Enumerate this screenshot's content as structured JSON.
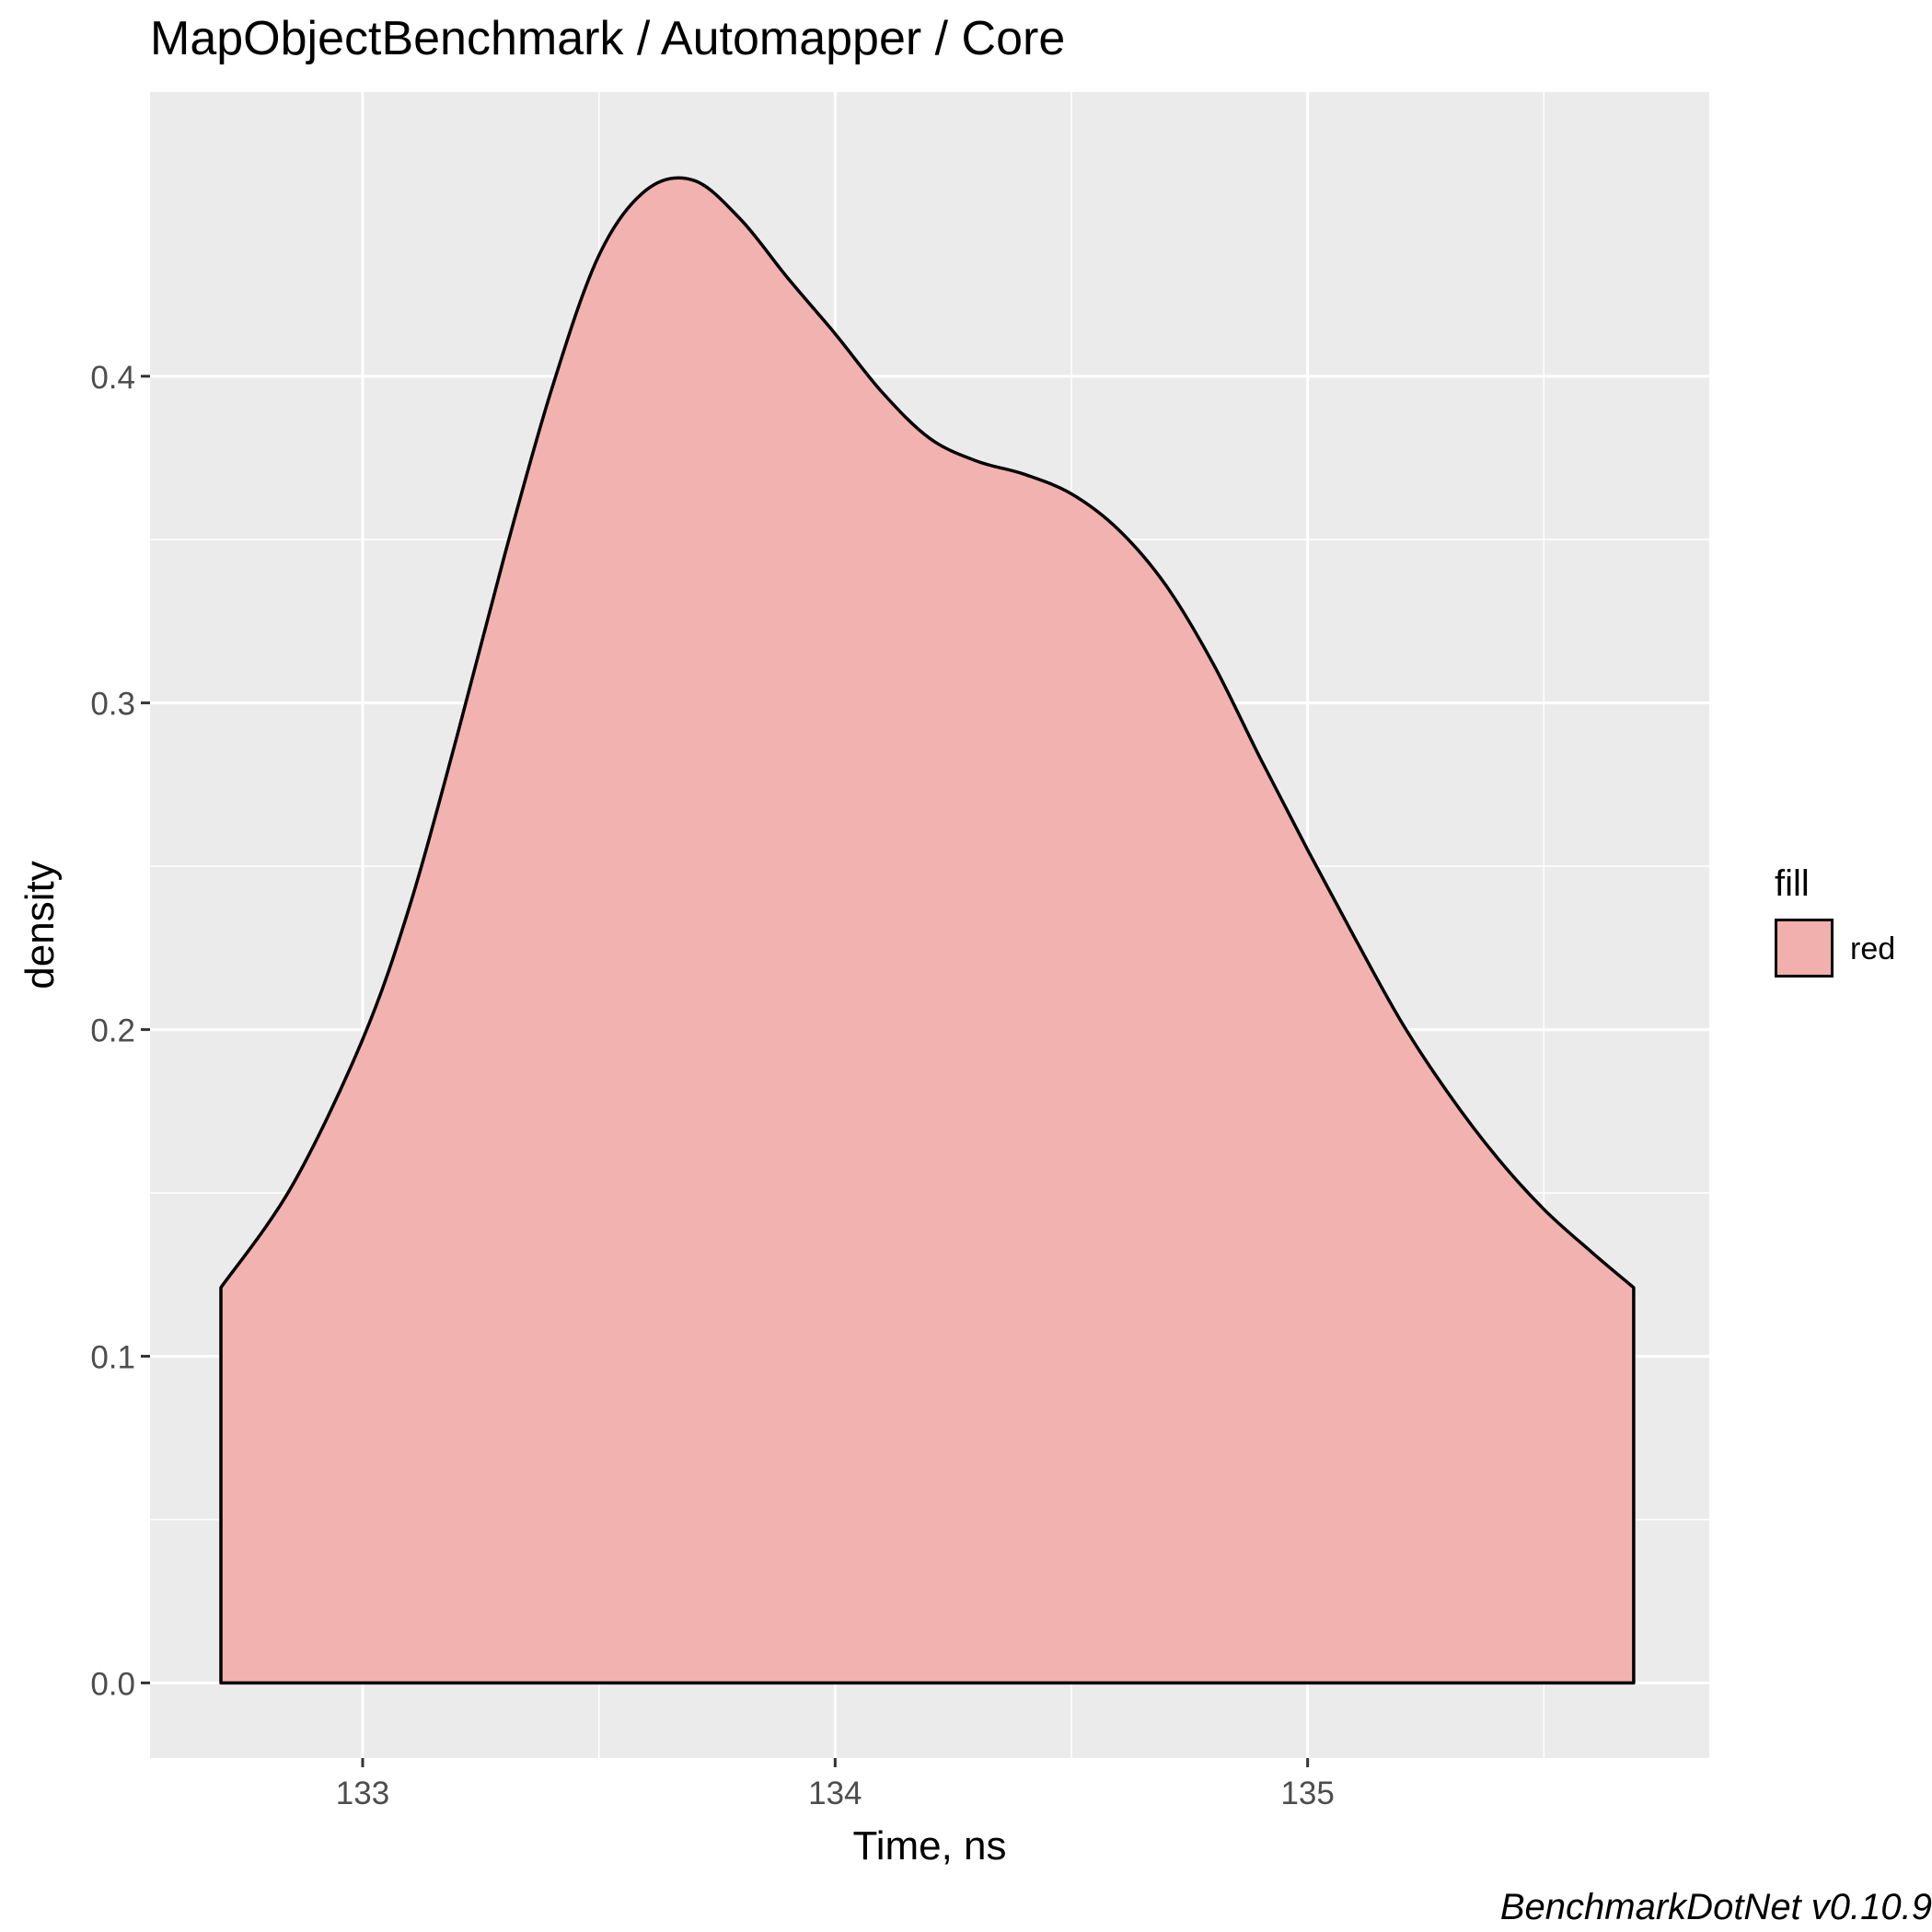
{
  "chart_data": {
    "type": "area",
    "title": "MapObjectBenchmark / Automapper / Core",
    "xlabel": "Time, ns",
    "ylabel": "density",
    "caption": "BenchmarkDotNet v0.10.9",
    "xlim": [
      132.55,
      135.85
    ],
    "ylim": [
      -0.023,
      0.487
    ],
    "x_ticks": [
      133,
      134,
      135
    ],
    "x_tick_labels": [
      "133",
      "134",
      "135"
    ],
    "y_ticks": [
      0.0,
      0.1,
      0.2,
      0.3,
      0.4
    ],
    "y_tick_labels": [
      "0.0",
      "0.1",
      "0.2",
      "0.3",
      "0.4"
    ],
    "grid": true,
    "legend": {
      "title": "fill",
      "position": "right",
      "entries": [
        "red"
      ]
    },
    "series": [
      {
        "fill": "#f1afad",
        "x": [
          132.7,
          132.85,
          133.0,
          133.1,
          133.2,
          133.3,
          133.4,
          133.5,
          133.6,
          133.7,
          133.8,
          133.9,
          134.0,
          134.1,
          134.2,
          134.3,
          134.4,
          134.5,
          134.6,
          134.7,
          134.8,
          134.9,
          135.0,
          135.1,
          135.2,
          135.3,
          135.4,
          135.5,
          135.6,
          135.69
        ],
        "y": [
          0.121,
          0.152,
          0.197,
          0.238,
          0.29,
          0.345,
          0.396,
          0.437,
          0.457,
          0.46,
          0.448,
          0.43,
          0.413,
          0.395,
          0.381,
          0.374,
          0.37,
          0.364,
          0.353,
          0.336,
          0.312,
          0.283,
          0.255,
          0.228,
          0.202,
          0.18,
          0.161,
          0.145,
          0.132,
          0.121
        ]
      }
    ]
  }
}
